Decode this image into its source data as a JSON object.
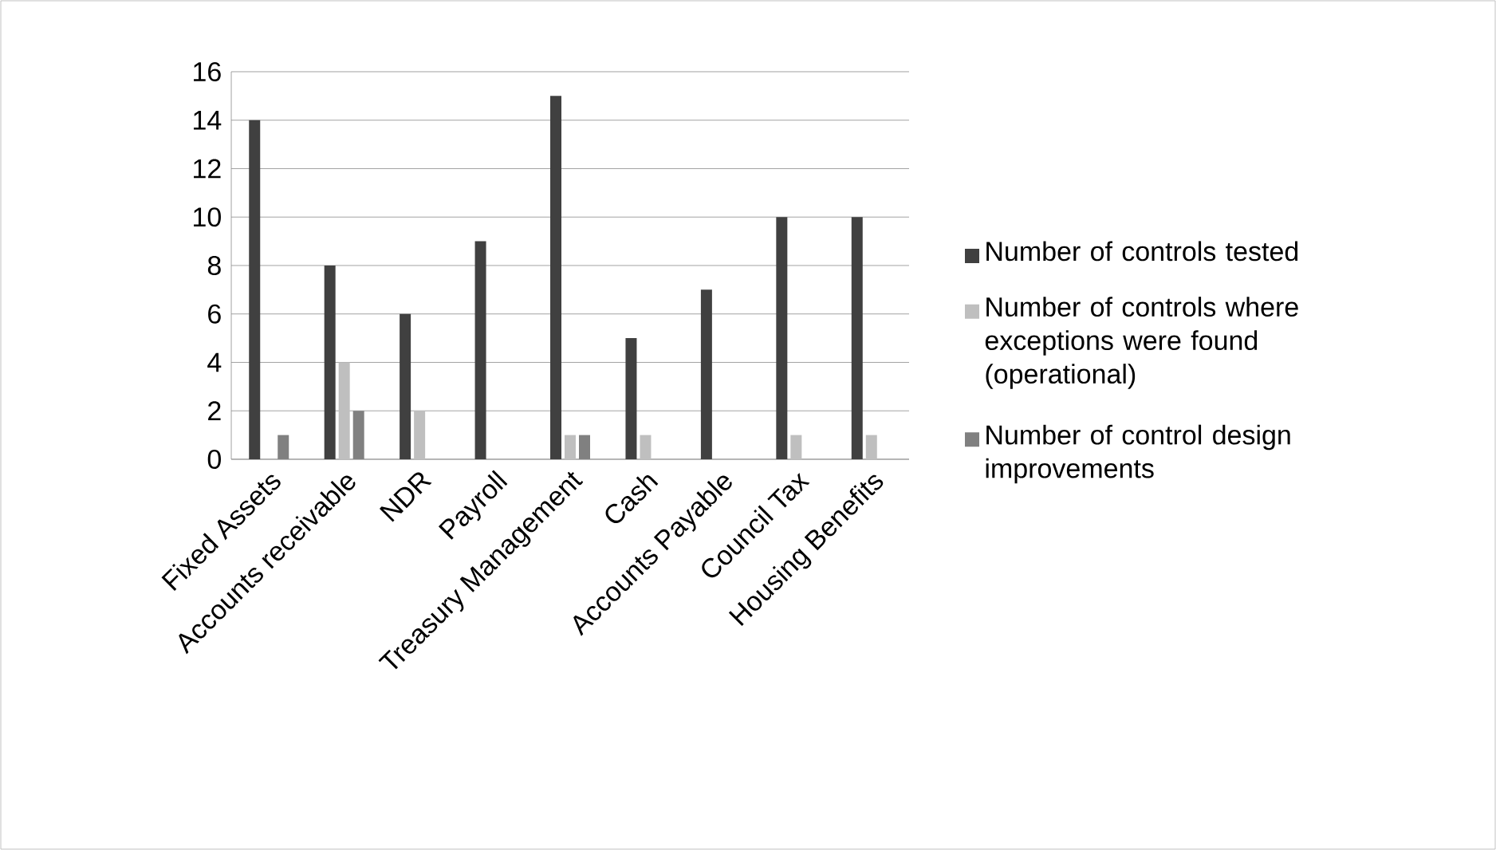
{
  "chart_data": {
    "type": "bar",
    "categories": [
      "Fixed Assets",
      "Accounts receivable",
      "NDR",
      "Payroll",
      "Treasury Management",
      "Cash",
      "Accounts Payable",
      "Council Tax",
      "Housing Benefits"
    ],
    "series": [
      {
        "name": "Number of controls tested",
        "color": "#404040",
        "values": [
          14,
          8,
          6,
          9,
          15,
          5,
          7,
          10,
          10
        ]
      },
      {
        "name": "Number of controls where exceptions were found (operational)",
        "color": "#bfbfbf",
        "values": [
          0,
          4,
          2,
          0,
          1,
          1,
          0,
          1,
          1
        ]
      },
      {
        "name": "Number of control design improvements",
        "color": "#808080",
        "values": [
          1,
          2,
          0,
          0,
          1,
          0,
          0,
          0,
          0
        ]
      }
    ],
    "ylim": [
      0,
      16
    ],
    "yticks": [
      0,
      2,
      4,
      6,
      8,
      10,
      12,
      14,
      16
    ],
    "grid": "y",
    "legend": "right"
  }
}
